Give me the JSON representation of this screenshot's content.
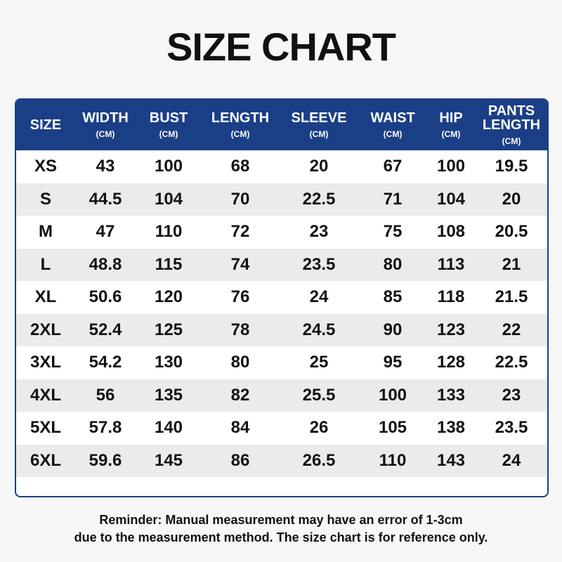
{
  "header": {
    "title": "SIZE CHART"
  },
  "table": {
    "columns": [
      {
        "name": "SIZE"
      },
      {
        "name": "WIDTH",
        "unit": "(CM)"
      },
      {
        "name": "BUST",
        "unit": "(CM)"
      },
      {
        "name": "LENGTH",
        "unit": "(CM)"
      },
      {
        "name": "SLEEVE",
        "unit": "(CM)"
      },
      {
        "name": "WAIST",
        "unit": "(CM)"
      },
      {
        "name": "HIP",
        "unit": "(CM)"
      },
      {
        "name": "PANTS LENGTH",
        "unit": "(CM)"
      }
    ],
    "rows": [
      [
        "XS",
        "43",
        "100",
        "68",
        "20",
        "67",
        "100",
        "19.5"
      ],
      [
        "S",
        "44.5",
        "104",
        "70",
        "22.5",
        "71",
        "104",
        "20"
      ],
      [
        "M",
        "47",
        "110",
        "72",
        "23",
        "75",
        "108",
        "20.5"
      ],
      [
        "L",
        "48.8",
        "115",
        "74",
        "23.5",
        "80",
        "113",
        "21"
      ],
      [
        "XL",
        "50.6",
        "120",
        "76",
        "24",
        "85",
        "118",
        "21.5"
      ],
      [
        "2XL",
        "52.4",
        "125",
        "78",
        "24.5",
        "90",
        "123",
        "22"
      ],
      [
        "3XL",
        "54.2",
        "130",
        "80",
        "25",
        "95",
        "128",
        "22.5"
      ],
      [
        "4XL",
        "56",
        "135",
        "82",
        "25.5",
        "100",
        "133",
        "23"
      ],
      [
        "5XL",
        "57.8",
        "140",
        "84",
        "26",
        "105",
        "138",
        "23.5"
      ],
      [
        "6XL",
        "59.6",
        "145",
        "86",
        "26.5",
        "110",
        "143",
        "24"
      ]
    ]
  },
  "reminder": [
    "Reminder: Manual measurement may have an error of 1-3cm",
    "due to the measurement method. The size chart is for reference only."
  ]
}
